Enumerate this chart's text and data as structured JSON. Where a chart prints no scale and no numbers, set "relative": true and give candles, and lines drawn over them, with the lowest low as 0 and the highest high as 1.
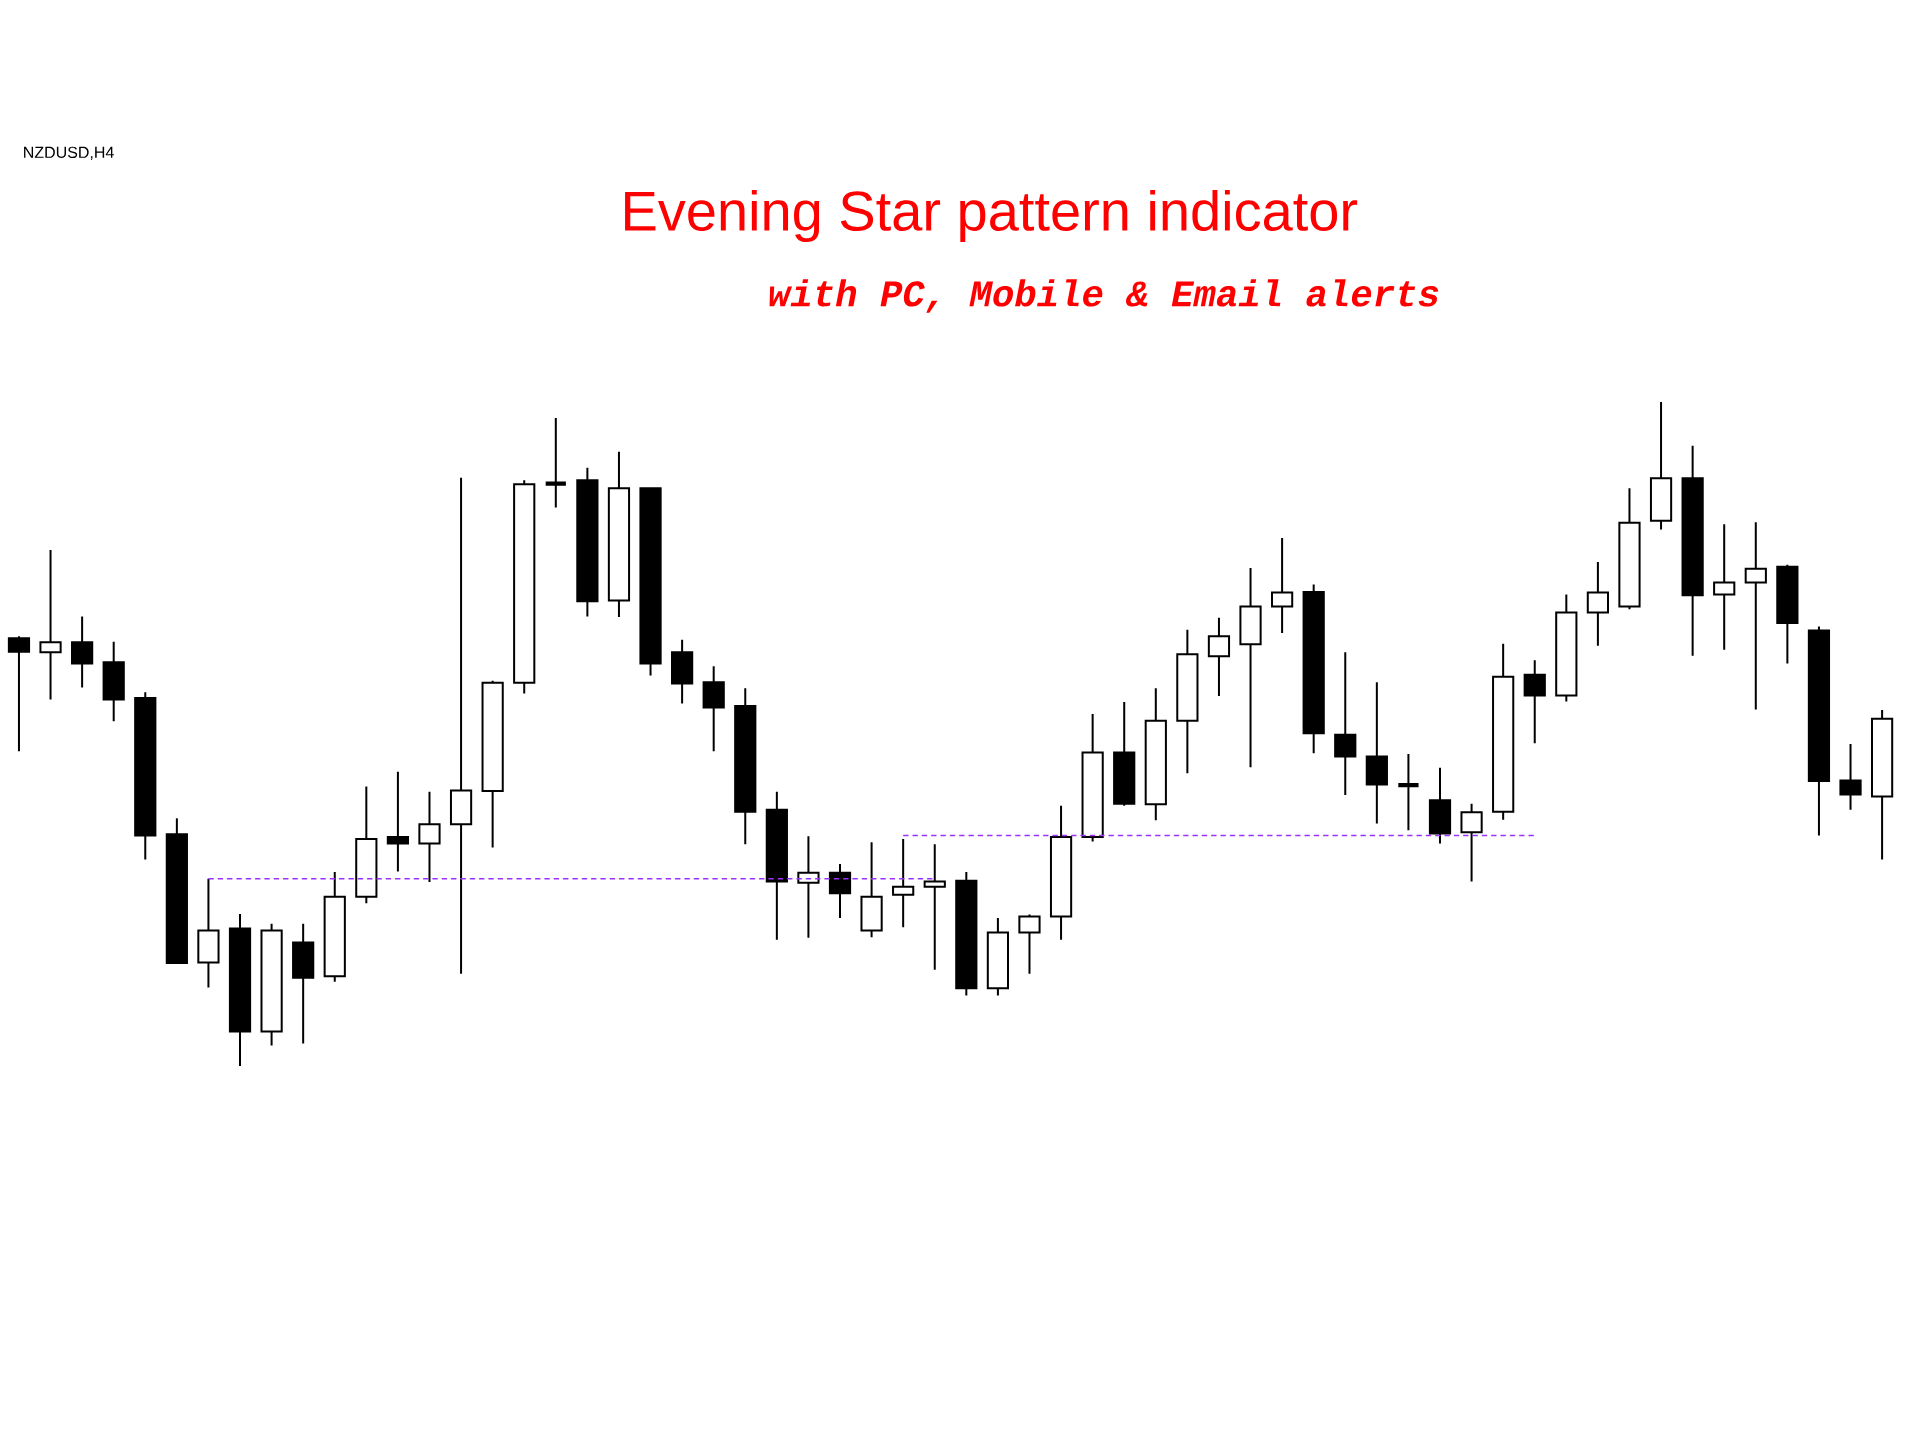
{
  "chart_data": {
    "type": "candlestick",
    "title": "Evening Star pattern indicator",
    "subtitle": "with PC, Mobile & Email alerts",
    "annotations": [
      "NZDUSD,H4"
    ],
    "relative": true,
    "categories": [
      null,
      null,
      null,
      null,
      null,
      null,
      null,
      null,
      null,
      null,
      null,
      null,
      null,
      null,
      null,
      null,
      null,
      null,
      null,
      null,
      null,
      null,
      null,
      null,
      null,
      null,
      null,
      null,
      null,
      null,
      null,
      null,
      null,
      null,
      null,
      null,
      null,
      null,
      null,
      null,
      null,
      null,
      null,
      null,
      null,
      null,
      null,
      null,
      null,
      null,
      null,
      null,
      null,
      null,
      null,
      null,
      null,
      null,
      null,
      null
    ],
    "ohlc": [
      [
        0.644,
        0.647,
        0.474,
        0.624
      ],
      [
        0.623,
        0.777,
        0.552,
        0.638
      ],
      [
        0.638,
        0.677,
        0.57,
        0.606
      ],
      [
        0.608,
        0.639,
        0.519,
        0.552
      ],
      [
        0.554,
        0.563,
        0.311,
        0.347
      ],
      [
        0.349,
        0.373,
        0.155,
        0.155
      ],
      [
        0.156,
        0.282,
        0.118,
        0.204
      ],
      [
        0.207,
        0.229,
        0,
        0.052
      ],
      [
        0.052,
        0.214,
        0.031,
        0.204
      ],
      [
        0.186,
        0.214,
        0.034,
        0.133
      ],
      [
        0.135,
        0.292,
        0.127,
        0.255
      ],
      [
        0.255,
        0.421,
        0.245,
        0.342
      ],
      [
        0.345,
        0.443,
        0.293,
        0.335
      ],
      [
        0.335,
        0.413,
        0.277,
        0.364
      ],
      [
        0.364,
        0.886,
        0.139,
        0.415
      ],
      [
        0.414,
        0.58,
        0.329,
        0.577
      ],
      [
        0.577,
        0.882,
        0.561,
        0.876
      ],
      [
        0.877,
        0.976,
        0.841,
        0.877
      ],
      [
        0.882,
        0.901,
        0.677,
        0.7
      ],
      [
        0.701,
        0.925,
        0.676,
        0.87
      ],
      [
        0.87,
        0.87,
        0.588,
        0.606
      ],
      [
        0.623,
        0.642,
        0.546,
        0.576
      ],
      [
        0.578,
        0.602,
        0.474,
        0.54
      ],
      [
        0.542,
        0.569,
        0.334,
        0.383
      ],
      [
        0.386,
        0.413,
        0.19,
        0.278
      ],
      [
        0.276,
        0.346,
        0.193,
        0.291
      ],
      [
        0.291,
        0.304,
        0.223,
        0.26
      ],
      [
        0.204,
        0.337,
        0.194,
        0.255
      ],
      [
        0.258,
        0.342,
        0.209,
        0.27
      ],
      [
        0.27,
        0.334,
        0.145,
        0.278
      ],
      [
        0.279,
        0.292,
        0.106,
        0.117
      ],
      [
        0.117,
        0.223,
        0.106,
        0.201
      ],
      [
        0.201,
        0.228,
        0.139,
        0.225
      ],
      [
        0.225,
        0.392,
        0.19,
        0.345
      ],
      [
        0.345,
        0.53,
        0.338,
        0.472
      ],
      [
        0.472,
        0.548,
        0.392,
        0.395
      ],
      [
        0.394,
        0.569,
        0.37,
        0.52
      ],
      [
        0.52,
        0.657,
        0.441,
        0.62
      ],
      [
        0.617,
        0.675,
        0.557,
        0.647
      ],
      [
        0.635,
        0.75,
        0.45,
        0.692
      ],
      [
        0.692,
        0.795,
        0.652,
        0.713
      ],
      [
        0.714,
        0.725,
        0.471,
        0.501
      ],
      [
        0.499,
        0.623,
        0.408,
        0.466
      ],
      [
        0.466,
        0.578,
        0.365,
        0.424
      ],
      [
        0.423,
        0.47,
        0.355,
        0.423
      ],
      [
        0.4,
        0.449,
        0.335,
        0.35
      ],
      [
        0.352,
        0.395,
        0.278,
        0.382
      ],
      [
        0.383,
        0.636,
        0.371,
        0.586
      ],
      [
        0.589,
        0.611,
        0.486,
        0.558
      ],
      [
        0.558,
        0.71,
        0.549,
        0.683
      ],
      [
        0.683,
        0.759,
        0.633,
        0.713
      ],
      [
        0.692,
        0.87,
        0.688,
        0.818
      ],
      [
        0.821,
        1,
        0.808,
        0.885
      ],
      [
        0.885,
        0.934,
        0.618,
        0.709
      ],
      [
        0.71,
        0.816,
        0.627,
        0.728
      ],
      [
        0.728,
        0.819,
        0.537,
        0.749
      ],
      [
        0.752,
        0.755,
        0.606,
        0.667
      ],
      [
        0.656,
        0.662,
        0.347,
        0.429
      ],
      [
        0.43,
        0.485,
        0.386,
        0.409
      ],
      [
        0.406,
        0.536,
        0.311,
        0.523
      ]
    ],
    "series": [
      {
        "type": "line",
        "color": "#9b30ff",
        "line_style": "dashed",
        "values": [
          null,
          null,
          null,
          null,
          null,
          null,
          0.282,
          0.282,
          0.282,
          0.282,
          0.282,
          0.282,
          0.282,
          0.282,
          0.282,
          0.282,
          0.282,
          0.282,
          0.282,
          0.282,
          0.282,
          0.282,
          0.282,
          0.282,
          0.282,
          0.282,
          0.282,
          0.282,
          0.282,
          0.282,
          null,
          null,
          null,
          null,
          null,
          null,
          null,
          null,
          null,
          null,
          null,
          null,
          null,
          null,
          null,
          null,
          null,
          null,
          null,
          null,
          null,
          null,
          null,
          null,
          null,
          null,
          null,
          null,
          null,
          null
        ]
      },
      {
        "type": "line",
        "color": "#9b30ff",
        "line_style": "dashed",
        "values": [
          null,
          null,
          null,
          null,
          null,
          null,
          null,
          null,
          null,
          null,
          null,
          null,
          null,
          null,
          null,
          null,
          null,
          null,
          null,
          null,
          null,
          null,
          null,
          null,
          null,
          null,
          null,
          null,
          0.347,
          0.347,
          0.347,
          0.347,
          0.347,
          0.347,
          0.347,
          0.347,
          0.347,
          0.347,
          0.347,
          0.347,
          0.347,
          0.347,
          0.347,
          0.347,
          0.347,
          0.347,
          0.347,
          0.347,
          0.347,
          null,
          null,
          null,
          null,
          null,
          null,
          null,
          null,
          null,
          null,
          null
        ]
      }
    ]
  }
}
